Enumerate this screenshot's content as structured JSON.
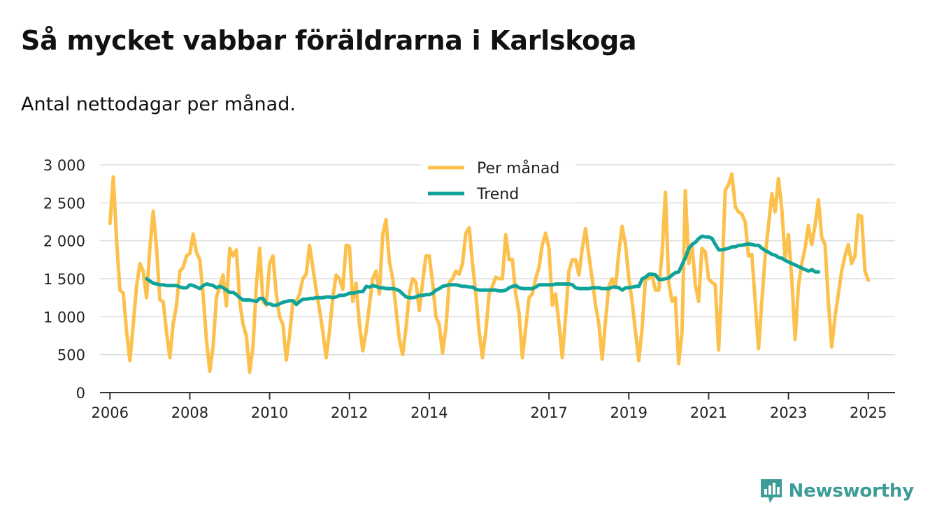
{
  "title": "Så mycket vabbar föräldrarna i Karlskoga",
  "subtitle": "Antal nettodagar per månad.",
  "brand": {
    "name": "Newsworthy",
    "icon": "bar-chart-logo-icon",
    "color": "#3c9c97"
  },
  "colors": {
    "monthly": "#fcc14c",
    "trend": "#10a39a",
    "grid": "#dddddd",
    "axis": "#333333"
  },
  "chart_data": {
    "type": "line",
    "title": "Så mycket vabbar föräldrarna i Karlskoga",
    "xlabel": "",
    "ylabel": "",
    "xlim": [
      2005.75,
      2025.67
    ],
    "ylim": [
      0,
      3000
    ],
    "y_ticks": [
      0,
      500,
      1000,
      1500,
      2000,
      2500,
      3000
    ],
    "y_tick_labels": [
      "0",
      "500",
      "1 000",
      "1 500",
      "2 000",
      "2 500",
      "3 000"
    ],
    "x_ticks": [
      2006,
      2008,
      2010,
      2012,
      2014,
      2017,
      2019,
      2021,
      2023,
      2025
    ],
    "x_tick_labels": [
      "2006",
      "2008",
      "2010",
      "2012",
      "2014",
      "2017",
      "2019",
      "2021",
      "2023",
      "2025"
    ],
    "grid": true,
    "legend_position": "top-center",
    "series": [
      {
        "name": "Per månad",
        "color": "#fcc14c",
        "start": 2006.0,
        "step": 0.08333,
        "values": [
          2230,
          2840,
          2000,
          1350,
          1310,
          800,
          420,
          900,
          1400,
          1700,
          1600,
          1250,
          1900,
          2390,
          1900,
          1220,
          1200,
          800,
          460,
          900,
          1150,
          1600,
          1650,
          1800,
          1830,
          2090,
          1850,
          1750,
          1300,
          700,
          280,
          600,
          1250,
          1400,
          1550,
          1140,
          1900,
          1800,
          1880,
          1200,
          900,
          750,
          270,
          600,
          1400,
          1900,
          1200,
          1150,
          1700,
          1800,
          1300,
          1000,
          900,
          430,
          750,
          1200,
          1200,
          1300,
          1500,
          1560,
          1940,
          1650,
          1350,
          1100,
          800,
          460,
          800,
          1250,
          1550,
          1500,
          1360,
          1940,
          1930,
          1200,
          1440,
          900,
          550,
          800,
          1150,
          1500,
          1600,
          1300,
          2080,
          2280,
          1730,
          1500,
          1100,
          700,
          500,
          850,
          1300,
          1500,
          1450,
          1080,
          1450,
          1800,
          1800,
          1450,
          1000,
          900,
          520,
          850,
          1450,
          1500,
          1600,
          1560,
          1700,
          2100,
          2170,
          1700,
          1300,
          800,
          460,
          800,
          1300,
          1400,
          1520,
          1500,
          1500,
          2080,
          1750,
          1750,
          1300,
          1050,
          460,
          850,
          1250,
          1300,
          1500,
          1650,
          1950,
          2100,
          1900,
          1150,
          1300,
          900,
          460,
          1000,
          1600,
          1750,
          1750,
          1550,
          1900,
          2160,
          1800,
          1500,
          1150,
          900,
          440,
          950,
          1400,
          1500,
          1380,
          1850,
          2190,
          1950,
          1500,
          1200,
          800,
          420,
          850,
          1500,
          1500,
          1550,
          1350,
          1350,
          1830,
          2640,
          1450,
          1200,
          1250,
          380,
          800,
          2660,
          1700,
          1960,
          1420,
          1200,
          1900,
          1850,
          1500,
          1450,
          1420,
          560,
          1500,
          2670,
          2740,
          2880,
          2450,
          2380,
          2350,
          2250,
          1800,
          1820,
          1200,
          580,
          1200,
          1800,
          2200,
          2620,
          2380,
          2820,
          2420,
          1760,
          2080,
          1500,
          700,
          1400,
          1700,
          1900,
          2200,
          1950,
          2200,
          2540,
          2050,
          1950,
          1200,
          600,
          1000,
          1300,
          1600,
          1800,
          1950,
          1700,
          1800,
          2340,
          2320,
          1600,
          1480
        ]
      },
      {
        "name": "Trend",
        "color": "#10a39a",
        "start": 2006.92,
        "step": 0.08333,
        "values": [
          1500,
          1470,
          1440,
          1430,
          1420,
          1420,
          1410,
          1410,
          1410,
          1410,
          1390,
          1380,
          1380,
          1420,
          1410,
          1390,
          1370,
          1410,
          1430,
          1420,
          1410,
          1380,
          1400,
          1380,
          1350,
          1320,
          1320,
          1290,
          1250,
          1220,
          1220,
          1220,
          1210,
          1200,
          1240,
          1240,
          1170,
          1170,
          1150,
          1150,
          1170,
          1190,
          1200,
          1210,
          1210,
          1160,
          1200,
          1230,
          1230,
          1240,
          1240,
          1250,
          1250,
          1250,
          1260,
          1260,
          1250,
          1260,
          1280,
          1280,
          1290,
          1310,
          1310,
          1320,
          1330,
          1330,
          1400,
          1390,
          1410,
          1400,
          1380,
          1380,
          1370,
          1370,
          1370,
          1360,
          1340,
          1300,
          1260,
          1250,
          1250,
          1260,
          1280,
          1280,
          1290,
          1290,
          1310,
          1350,
          1370,
          1400,
          1410,
          1420,
          1420,
          1420,
          1410,
          1400,
          1400,
          1390,
          1390,
          1360,
          1350,
          1350,
          1350,
          1350,
          1350,
          1350,
          1340,
          1340,
          1350,
          1380,
          1400,
          1410,
          1380,
          1370,
          1370,
          1370,
          1370,
          1390,
          1420,
          1420,
          1420,
          1420,
          1420,
          1430,
          1430,
          1430,
          1430,
          1430,
          1420,
          1380,
          1370,
          1370,
          1370,
          1370,
          1380,
          1380,
          1380,
          1370,
          1370,
          1370,
          1390,
          1390,
          1380,
          1350,
          1380,
          1380,
          1390,
          1400,
          1400,
          1500,
          1520,
          1560,
          1560,
          1550,
          1490,
          1490,
          1500,
          1510,
          1550,
          1580,
          1590,
          1690,
          1780,
          1900,
          1950,
          1980,
          2030,
          2060,
          2050,
          2050,
          2030,
          1950,
          1880,
          1880,
          1890,
          1900,
          1920,
          1920,
          1940,
          1940,
          1950,
          1960,
          1950,
          1940,
          1940,
          1900,
          1870,
          1850,
          1820,
          1810,
          1780,
          1770,
          1740,
          1720,
          1700,
          1680,
          1660,
          1640,
          1620,
          1600,
          1620,
          1590,
          1590
        ]
      }
    ]
  }
}
